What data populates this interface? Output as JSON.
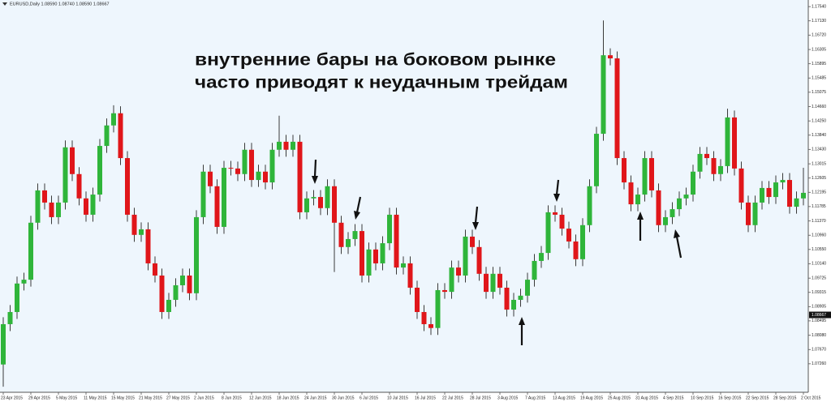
{
  "chart_data": {
    "type": "candlestick",
    "title": "EURUSD,Daily  1.08590 1.08740 1.08590 1.08667",
    "annotations": [
      "внутренние бары на боковом рынке",
      "часто приводят к неудачным трейдам"
    ],
    "up_color": "#2fb53a",
    "down_color": "#e0161a",
    "wick_color": "#3a3a3a",
    "categories": [
      "23 Apr 2015",
      null,
      null,
      null,
      "29 Apr 2015",
      null,
      null,
      null,
      "5 May 2015",
      null,
      null,
      null,
      "11 May 2015",
      null,
      null,
      null,
      "15 May 2015",
      null,
      null,
      null,
      "21 May 2015",
      null,
      null,
      null,
      "27 May 2015",
      null,
      null,
      null,
      "2 Jun 2015",
      null,
      null,
      null,
      "8 Jun 2015",
      null,
      null,
      null,
      "12 Jun 2015",
      null,
      null,
      null,
      "18 Jun 2015",
      null,
      null,
      null,
      "24 Jun 2015",
      null,
      null,
      null,
      "30 Jun 2015",
      null,
      null,
      null,
      "6 Jul 2015",
      null,
      null,
      null,
      "10 Jul 2015",
      null,
      null,
      null,
      "16 Jul 2015",
      null,
      null,
      null,
      "22 Jul 2015",
      null,
      null,
      null,
      "28 Jul 2015",
      null,
      null,
      null,
      "3 Aug 2015",
      null,
      null,
      null,
      "7 Aug 2015",
      null,
      null,
      null,
      "13 Aug 2015",
      null,
      null,
      null,
      "19 Aug 2015",
      null,
      null,
      null,
      "25 Aug 2015",
      null,
      null,
      null,
      "31 Aug 2015",
      null,
      null,
      null,
      "4 Sep 2015",
      null,
      null,
      null,
      "10 Sep 2015",
      null,
      null,
      null,
      "16 Sep 2015",
      null,
      null,
      null,
      "22 Sep 2015",
      null,
      null,
      null,
      "28 Sep 2015",
      null,
      null,
      null,
      "2 Oct 2015"
    ],
    "open": [
      1.0724,
      1.084,
      1.0875,
      1.0957,
      1.0968,
      1.1132,
      1.1225,
      1.119,
      1.1148,
      1.119,
      1.1349,
      1.1272,
      1.1202,
      1.1155,
      1.1213,
      1.1353,
      1.1412,
      1.1447,
      1.1318,
      1.1155,
      1.1097,
      1.1113,
      1.1015,
      1.098,
      1.0875,
      1.091,
      1.0952,
      1.098,
      1.0929,
      1.1148,
      1.1279,
      1.1237,
      1.112,
      1.129,
      1.1288,
      1.1272,
      1.1342,
      1.1255,
      1.1279,
      1.1248,
      1.1342,
      1.1365,
      1.1342,
      1.1365,
      1.1162,
      1.1202,
      1.1206,
      1.1174,
      1.1237,
      1.1132,
      1.1062,
      1.1085,
      1.1108,
      1.098,
      1.1055,
      1.1015,
      1.1073,
      1.1155,
      1.1003,
      1.1015,
      1.0945,
      1.0875,
      1.084,
      1.0829,
      1.0938,
      1.0933,
      1.1003,
      1.098,
      1.1092,
      1.1062,
      1.0985,
      1.0933,
      1.0985,
      1.0945,
      1.0882,
      1.091,
      1.0922,
      1.0968,
      1.1022,
      1.1045,
      1.1162,
      1.1155,
      1.1115,
      1.1078,
      1.1027,
      1.1125,
      1.1237,
      1.1388,
      1.1614,
      1.1605,
      1.1318,
      1.1248,
      1.1185,
      1.1213,
      1.1318,
      1.1225,
      1.1125,
      1.1148,
      1.1171,
      1.1202,
      1.1213,
      1.1279,
      1.133,
      1.1318,
      1.1272,
      1.1295,
      1.1435,
      1.1288,
      1.119,
      1.1125,
      1.119,
      1.1232,
      1.1206,
      1.1248,
      1.1255,
      1.1178,
      1.1202
    ],
    "high": [
      1.086,
      1.0895,
      1.0977,
      1.0988,
      1.1152,
      1.1245,
      1.1245,
      1.121,
      1.121,
      1.1369,
      1.1369,
      1.1292,
      1.1222,
      1.1233,
      1.1373,
      1.1432,
      1.147,
      1.1467,
      1.1338,
      1.1175,
      1.1133,
      1.1133,
      1.1035,
      1.1,
      1.093,
      1.0972,
      1.1,
      1.1,
      1.1168,
      1.1299,
      1.1299,
      1.1257,
      1.131,
      1.131,
      1.1308,
      1.1362,
      1.1362,
      1.1299,
      1.1299,
      1.1362,
      1.144,
      1.1385,
      1.1385,
      1.1385,
      1.1222,
      1.1226,
      1.1226,
      1.1257,
      1.1257,
      1.1152,
      1.1105,
      1.1128,
      1.1128,
      1.1075,
      1.1075,
      1.1093,
      1.1175,
      1.1175,
      1.1035,
      1.1035,
      1.0965,
      1.0895,
      1.086,
      1.0958,
      1.0958,
      1.1023,
      1.1023,
      1.1112,
      1.1112,
      1.1082,
      1.1005,
      1.1005,
      1.1005,
      1.0965,
      1.093,
      1.0942,
      1.0988,
      1.1042,
      1.1065,
      1.1182,
      1.1182,
      1.1175,
      1.1135,
      1.1098,
      1.1145,
      1.1257,
      1.1408,
      1.1714,
      1.1634,
      1.1625,
      1.1338,
      1.1268,
      1.1233,
      1.1338,
      1.1338,
      1.1245,
      1.1168,
      1.1191,
      1.1222,
      1.1233,
      1.1299,
      1.135,
      1.135,
      1.1338,
      1.1315,
      1.146,
      1.1455,
      1.1308,
      1.121,
      1.121,
      1.1252,
      1.1252,
      1.1268,
      1.1275,
      1.1275,
      1.1222,
      1.129
    ],
    "low": [
      1.066,
      1.082,
      1.0855,
      1.0937,
      1.0948,
      1.1112,
      1.117,
      1.1128,
      1.1128,
      1.117,
      1.1252,
      1.1182,
      1.1135,
      1.1135,
      1.1193,
      1.1333,
      1.1392,
      1.1298,
      1.1135,
      1.1077,
      1.1077,
      1.0995,
      1.096,
      1.0855,
      1.0855,
      1.089,
      1.0932,
      1.0909,
      1.0909,
      1.1128,
      1.1217,
      1.11,
      1.11,
      1.1268,
      1.1252,
      1.1252,
      1.1235,
      1.1235,
      1.1228,
      1.1228,
      1.1322,
      1.1322,
      1.1322,
      1.1142,
      1.1142,
      1.1182,
      1.1154,
      1.1154,
      1.099,
      1.1042,
      1.1042,
      1.1065,
      1.096,
      1.096,
      1.0995,
      1.0995,
      1.1053,
      1.0983,
      1.0983,
      1.0925,
      1.0855,
      1.082,
      1.0809,
      1.0809,
      1.0913,
      1.0913,
      1.096,
      1.096,
      1.1042,
      1.0965,
      1.0913,
      1.0913,
      1.0925,
      1.0862,
      1.0862,
      1.089,
      1.0902,
      1.0948,
      1.1002,
      1.1025,
      1.1135,
      1.1095,
      1.1058,
      1.1007,
      1.1007,
      1.1105,
      1.1217,
      1.1368,
      1.1585,
      1.1298,
      1.1228,
      1.1165,
      1.1165,
      1.1193,
      1.1205,
      1.1105,
      1.1105,
      1.1128,
      1.1151,
      1.1182,
      1.1193,
      1.1259,
      1.1298,
      1.1252,
      1.1252,
      1.1275,
      1.1268,
      1.117,
      1.1105,
      1.1105,
      1.117,
      1.1186,
      1.1186,
      1.1228,
      1.1158,
      1.1158,
      1.1182
    ],
    "close": [
      1.084,
      1.0875,
      1.0957,
      1.0968,
      1.1132,
      1.1225,
      1.119,
      1.1148,
      1.119,
      1.1349,
      1.1272,
      1.1202,
      1.1155,
      1.1213,
      1.1353,
      1.1412,
      1.1447,
      1.1318,
      1.1155,
      1.1097,
      1.1113,
      1.1015,
      1.098,
      1.0875,
      1.091,
      1.0952,
      1.098,
      1.0929,
      1.1148,
      1.1279,
      1.1237,
      1.112,
      1.129,
      1.1288,
      1.1272,
      1.1342,
      1.1255,
      1.1279,
      1.1248,
      1.1342,
      1.1365,
      1.1342,
      1.1365,
      1.1162,
      1.1202,
      1.1206,
      1.1174,
      1.1237,
      1.1132,
      1.1062,
      1.1085,
      1.1108,
      1.098,
      1.1055,
      1.1015,
      1.1073,
      1.1155,
      1.1003,
      1.1015,
      1.0945,
      1.0875,
      1.084,
      1.0829,
      1.0938,
      1.0933,
      1.1003,
      1.098,
      1.1092,
      1.1062,
      1.0985,
      1.0933,
      1.0985,
      1.0945,
      1.0882,
      1.091,
      1.0922,
      1.0968,
      1.1022,
      1.1045,
      1.1162,
      1.1155,
      1.1115,
      1.1078,
      1.1027,
      1.1125,
      1.1237,
      1.1388,
      1.1614,
      1.1605,
      1.1318,
      1.1248,
      1.1185,
      1.1213,
      1.1318,
      1.1225,
      1.1125,
      1.1148,
      1.1171,
      1.1202,
      1.1213,
      1.1279,
      1.133,
      1.1318,
      1.1272,
      1.1295,
      1.1435,
      1.1288,
      1.119,
      1.1125,
      1.119,
      1.1232,
      1.1206,
      1.1248,
      1.1255,
      1.1178,
      1.1202,
      1.1218
    ],
    "last_price": 1.08667,
    "ylim": [
      1.0644,
      1.1773
    ],
    "yticks": [
      {
        "value": 1.1754,
        "label": "1.17540"
      },
      {
        "value": 1.1713,
        "label": "1.17130"
      },
      {
        "value": 1.1672,
        "label": "1.16720"
      },
      {
        "value": 1.16305,
        "label": "1.16305"
      },
      {
        "value": 1.15895,
        "label": "1.15895"
      },
      {
        "value": 1.15485,
        "label": "1.15485"
      },
      {
        "value": 1.15075,
        "label": "1.15075"
      },
      {
        "value": 1.1466,
        "label": "1.14660"
      },
      {
        "value": 1.1425,
        "label": "1.14250"
      },
      {
        "value": 1.1384,
        "label": "1.13840"
      },
      {
        "value": 1.1343,
        "label": "1.13430"
      },
      {
        "value": 1.13015,
        "label": "1.13015"
      },
      {
        "value": 1.12605,
        "label": "1.12605"
      },
      {
        "value": 1.12195,
        "label": "1.12195"
      },
      {
        "value": 1.11785,
        "label": "1.11785"
      },
      {
        "value": 1.1137,
        "label": "1.11370"
      },
      {
        "value": 1.1096,
        "label": "1.10960"
      },
      {
        "value": 1.1055,
        "label": "1.10550"
      },
      {
        "value": 1.1014,
        "label": "1.10140"
      },
      {
        "value": 1.09725,
        "label": "1.09725"
      },
      {
        "value": 1.09315,
        "label": "1.09315"
      },
      {
        "value": 1.08905,
        "label": "1.08905"
      },
      {
        "value": 1.08495,
        "label": "1.08495"
      },
      {
        "value": 1.0808,
        "label": "1.08080"
      },
      {
        "value": 1.0767,
        "label": "1.07670"
      },
      {
        "value": 1.0726,
        "label": "1.07260"
      }
    ]
  }
}
